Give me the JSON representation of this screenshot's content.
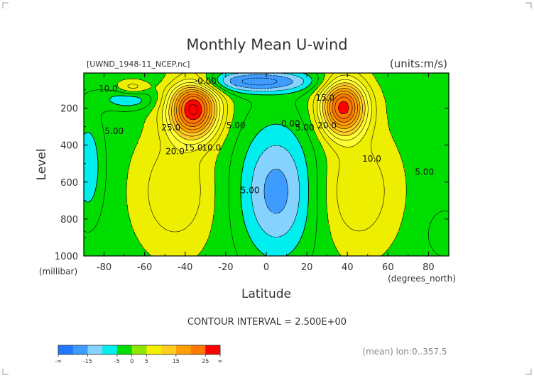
{
  "chart_data": {
    "type": "heatmap",
    "title": "Monthly Mean U-wind",
    "source_label": "[UWND_1948-11_NCEP.nc]",
    "units_label": "(units:m/s)",
    "xlabel": "Latitude",
    "x_units": "(degrees_north)",
    "ylabel": "Level",
    "y_units": "(millibar)",
    "xlim": [
      -90,
      90
    ],
    "ylim": [
      1000,
      10
    ],
    "x_ticks": [
      -80,
      -60,
      -40,
      -20,
      0,
      20,
      40,
      60,
      80
    ],
    "y_ticks": [
      200,
      400,
      600,
      800,
      1000
    ],
    "contour_interval": "CONTOUR INTERVAL = 2.500E+00",
    "footnote": "(mean) lon:0..357.5",
    "contour_labels": [
      {
        "text": "10.0",
        "lat": -78,
        "lev": 110
      },
      {
        "text": "-0.00",
        "lat": -30,
        "lev": 70
      },
      {
        "text": "5.00",
        "lat": -75,
        "lev": 340
      },
      {
        "text": "25.0",
        "lat": -47,
        "lev": 320
      },
      {
        "text": "20.0",
        "lat": -45,
        "lev": 450
      },
      {
        "text": "15.0",
        "lat": -36,
        "lev": 430
      },
      {
        "text": "10.0",
        "lat": -27,
        "lev": 430
      },
      {
        "text": "5.00",
        "lat": -15,
        "lev": 310
      },
      {
        "text": "0.00",
        "lat": 12,
        "lev": 300
      },
      {
        "text": "5.00",
        "lat": 19,
        "lev": 320
      },
      {
        "text": "15.0",
        "lat": 29,
        "lev": 160
      },
      {
        "text": "20.0",
        "lat": 30,
        "lev": 310
      },
      {
        "text": "10.0",
        "lat": 52,
        "lev": 490
      },
      {
        "text": "5.00",
        "lat": 78,
        "lev": 560
      },
      {
        "text": "5.00",
        "lat": -8,
        "lev": 660
      }
    ],
    "colorbar": {
      "labels": [
        "-∞",
        "-15",
        "-5",
        "0",
        "5",
        "15",
        "25",
        "∞"
      ],
      "colors": [
        "#1f78ff",
        "#3e9bff",
        "#86d2ff",
        "#00eeee",
        "#00dd00",
        "#8ee600",
        "#f0f000",
        "#ffcc22",
        "#ffa000",
        "#ff7800",
        "#ff0000"
      ]
    },
    "field_colors": {
      "c_lt_-5": "#3e9bff",
      "c_-5_-2.5": "#86d2ff",
      "c_-2.5_0": "#00eeee",
      "c_0_5": "#00dd00",
      "c_5_10": "#eeee00",
      "c_10_15": "#ffff33",
      "c_15_20": "#ffcc22",
      "c_20_25": "#ffa000",
      "c_25_30": "#ff7800",
      "c_gt_30": "#ff0000"
    }
  }
}
